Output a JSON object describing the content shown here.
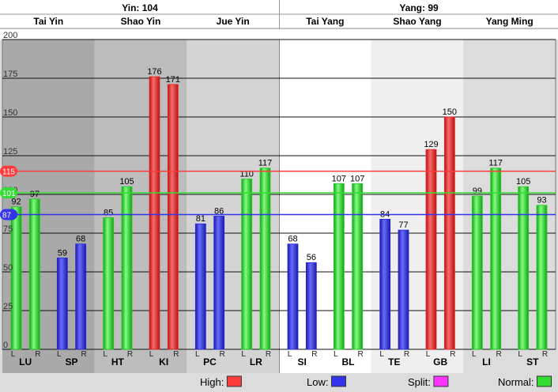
{
  "header": {
    "yin_label": "Yin: 104",
    "yang_label": "Yang: 99"
  },
  "groups": [
    {
      "name": "Tai Yin",
      "side": "yin",
      "bg": "#a9a9a9"
    },
    {
      "name": "Shao Yin",
      "side": "yin",
      "bg": "#bdbdbd"
    },
    {
      "name": "Jue Yin",
      "side": "yin",
      "bg": "#d4d4d4"
    },
    {
      "name": "Tai Yang",
      "side": "yang",
      "bg": "#ffffff"
    },
    {
      "name": "Shao Yang",
      "side": "yang",
      "bg": "#efefef"
    },
    {
      "name": "Yang Ming",
      "side": "yang",
      "bg": "#dcdcdc"
    }
  ],
  "chart_data": {
    "type": "bar",
    "ylim": [
      0,
      200
    ],
    "yticks": [
      0,
      25,
      50,
      75,
      100,
      125,
      150,
      175,
      200
    ],
    "lr_labels": [
      "L",
      "R"
    ],
    "categories": [
      "LU",
      "SP",
      "HT",
      "KI",
      "PC",
      "LR",
      "SI",
      "BL",
      "TE",
      "GB",
      "LI",
      "ST"
    ],
    "series": [
      {
        "values": [
          92,
          59,
          85,
          176,
          81,
          110,
          68,
          107,
          84,
          129,
          99,
          105
        ]
      },
      {
        "values": [
          97,
          68,
          105,
          171,
          86,
          117,
          56,
          107,
          77,
          150,
          117,
          93
        ]
      }
    ],
    "bar_status": [
      [
        "normal",
        "normal"
      ],
      [
        "low",
        "low"
      ],
      [
        "normal",
        "normal"
      ],
      [
        "high",
        "high"
      ],
      [
        "low",
        "low"
      ],
      [
        "normal",
        "normal"
      ],
      [
        "low",
        "low"
      ],
      [
        "normal",
        "normal"
      ],
      [
        "low",
        "low"
      ],
      [
        "high",
        "high"
      ],
      [
        "normal",
        "normal"
      ],
      [
        "normal",
        "normal"
      ]
    ],
    "reference_lines": [
      {
        "value": 115,
        "label": "115",
        "color": "#ff3b3b"
      },
      {
        "value": 101,
        "label": "101",
        "color": "#33dd33"
      },
      {
        "value": 87,
        "label": "87",
        "color": "#3333ee"
      }
    ],
    "legend": [
      {
        "label": "High:",
        "color": "#ff3b3b"
      },
      {
        "label": "Low:",
        "color": "#3333ee"
      },
      {
        "label": "Split:",
        "color": "#ff33ff"
      },
      {
        "label": "Normal:",
        "color": "#33dd33"
      }
    ],
    "colors": {
      "high": "#ee2222",
      "low": "#2929dd",
      "normal": "#22cc22"
    }
  }
}
